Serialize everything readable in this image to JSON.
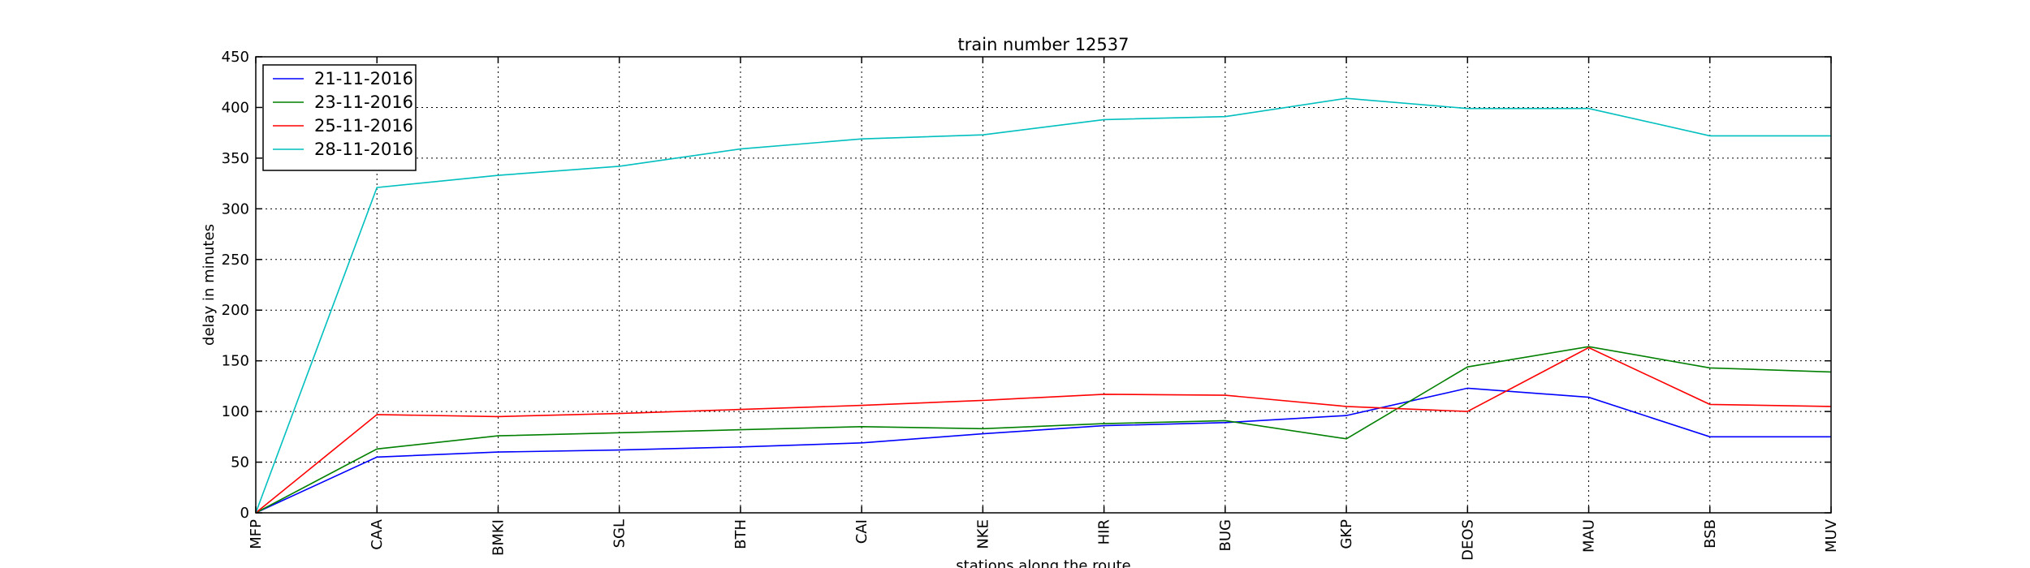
{
  "chart_data": {
    "type": "line",
    "title": "train number 12537",
    "xlabel": "stations along the route",
    "ylabel": "delay in minutes",
    "categories": [
      "MFP",
      "CAA",
      "BMKI",
      "SGL",
      "BTH",
      "CAI",
      "NKE",
      "HIR",
      "BUG",
      "GKP",
      "DEOS",
      "MAU",
      "BSB",
      "MUV"
    ],
    "ylim": [
      0,
      450
    ],
    "yticks": [
      0,
      50,
      100,
      150,
      200,
      250,
      300,
      350,
      400,
      450
    ],
    "grid": true,
    "legend_position": "top-left",
    "series": [
      {
        "name": "21-11-2016",
        "color": "#0000ff",
        "values": [
          0,
          55,
          60,
          62,
          65,
          69,
          78,
          86,
          89,
          96,
          123,
          114,
          75,
          75
        ]
      },
      {
        "name": "23-11-2016",
        "color": "#008000",
        "values": [
          0,
          63,
          76,
          79,
          82,
          85,
          83,
          88,
          91,
          73,
          144,
          164,
          143,
          139
        ]
      },
      {
        "name": "25-11-2016",
        "color": "#ff0000",
        "values": [
          0,
          97,
          95,
          98,
          102,
          106,
          111,
          117,
          116,
          105,
          100,
          163,
          107,
          105
        ]
      },
      {
        "name": "28-11-2016",
        "color": "#00bfbf",
        "values": [
          0,
          321,
          333,
          342,
          359,
          369,
          373,
          388,
          391,
          409,
          399,
          399,
          372,
          372
        ]
      }
    ]
  }
}
